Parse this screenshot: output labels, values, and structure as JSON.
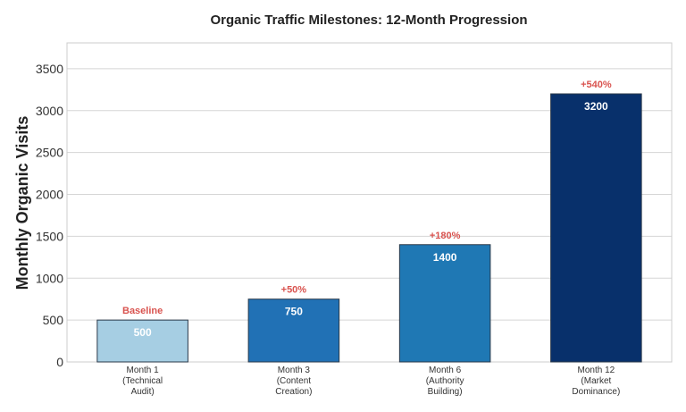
{
  "chart_data": {
    "type": "bar",
    "title": "Organic Traffic Milestones: 12-Month Progression",
    "xlabel": "",
    "ylabel": "Monthly Organic Visits",
    "categories": [
      [
        "Month 1",
        "(Technical",
        "Audit)"
      ],
      [
        "Month 3",
        "(Content",
        "Creation)"
      ],
      [
        "Month 6",
        "(Authority",
        "Building)"
      ],
      [
        "Month 12",
        "(Market",
        "Dominance)"
      ]
    ],
    "values": [
      500,
      750,
      1400,
      3200
    ],
    "value_labels": [
      "500",
      "750",
      "1400",
      "3200"
    ],
    "annotations": [
      "Baseline",
      "+50%",
      "+180%",
      "+540%"
    ],
    "colors": [
      "#a6cee3",
      "#2171b5",
      "#1f78b4",
      "#08306b"
    ],
    "annotation_color": "#d9534f",
    "ylim": [
      0,
      3840
    ],
    "yticks": [
      0,
      500,
      1000,
      1500,
      2000,
      2500,
      3000,
      3500
    ],
    "grid": true
  }
}
